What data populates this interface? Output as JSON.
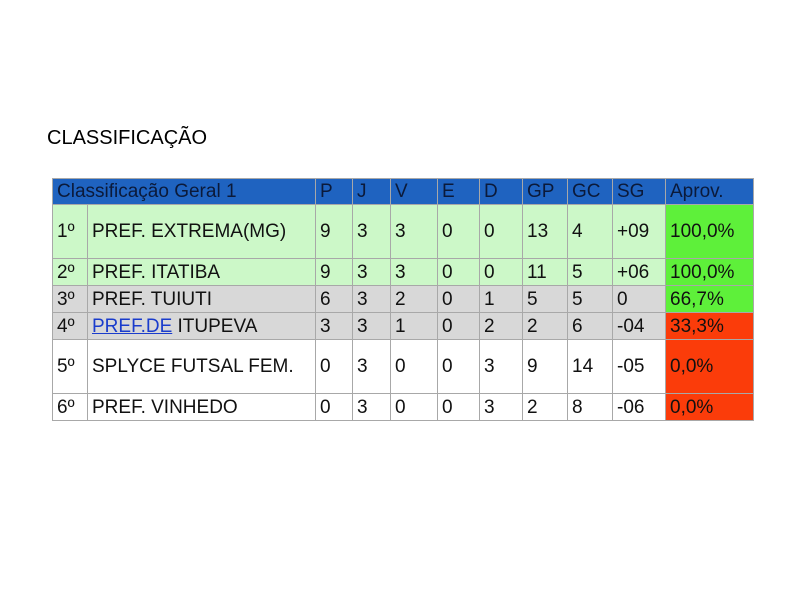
{
  "title": "CLASSIFICAÇÃO",
  "table": {
    "headers": [
      "Classificação Geral 1",
      "P",
      "J",
      "V",
      "E",
      "D",
      "GP",
      "GC",
      "SG",
      "Aprov."
    ],
    "rows": [
      {
        "pos": "1º",
        "team": "PREF. EXTREMA(MG)",
        "P": "9",
        "J": "3",
        "V": "3",
        "E": "0",
        "D": "0",
        "GP": "13",
        "GC": "4",
        "SG": "+09",
        "aprov": "100,0%"
      },
      {
        "pos": "2º",
        "team": "PREF. ITATIBA",
        "P": "9",
        "J": "3",
        "V": "3",
        "E": "0",
        "D": "0",
        "GP": "11",
        "GC": "5",
        "SG": "+06",
        "aprov": "100,0%"
      },
      {
        "pos": "3º",
        "team": "PREF. TUIUTI",
        "P": "6",
        "J": "3",
        "V": "2",
        "E": "0",
        "D": "1",
        "GP": "5",
        "GC": "5",
        "SG": "0",
        "aprov": "66,7%"
      },
      {
        "pos": "4º",
        "team_link": "PREF.DE",
        "team_rest": " ITUPEVA",
        "P": "3",
        "J": "3",
        "V": "1",
        "E": "0",
        "D": "2",
        "GP": "2",
        "GC": "6",
        "SG": "-04",
        "aprov": "33,3%"
      },
      {
        "pos": "5º",
        "team": "SPLYCE FUTSAL FEM.",
        "P": "0",
        "J": "3",
        "V": "0",
        "E": "0",
        "D": "3",
        "GP": "9",
        "GC": "14",
        "SG": "-05",
        "aprov": "0,0%"
      },
      {
        "pos": "6º",
        "team": "PREF. VINHEDO",
        "P": "0",
        "J": "3",
        "V": "0",
        "E": "0",
        "D": "3",
        "GP": "2",
        "GC": "8",
        "SG": "-06",
        "aprov": "0,0%"
      }
    ]
  },
  "colors": {
    "header": "#1f63c0",
    "qualified": "#ccf8c8",
    "mid": "#d8d8d8",
    "aprov_good": "#5ef03a",
    "aprov_bad": "#fb3c0a"
  }
}
